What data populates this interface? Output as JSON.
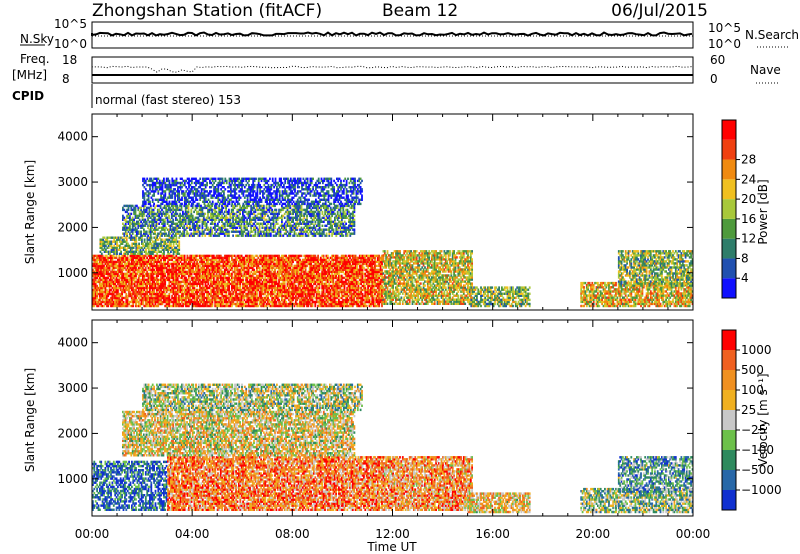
{
  "header": {
    "station": "Zhongshan Station (fitACF)",
    "beam": "Beam 12",
    "date": "06/Jul/2015"
  },
  "summary_panels": {
    "nsky": {
      "label": "N.Sky",
      "left_ticks": [
        "10^5",
        "10^0"
      ],
      "right_ticks": [
        "10^5",
        "10^0"
      ],
      "right_label": "N.Search"
    },
    "freq": {
      "label_line1": "Freq.",
      "label_line2": "[MHz]",
      "left_ticks": [
        "18",
        "8"
      ],
      "right_ticks": [
        "60",
        "0"
      ],
      "right_label": "Nave"
    },
    "cpid": {
      "label": "CPID",
      "text": "normal (fast stereo) 153"
    }
  },
  "chart_data": [
    {
      "type": "heatmap",
      "name": "power",
      "ylabel": "Slant Range [km]",
      "xlabel": "Time UT",
      "x_ticks": [
        "00:00",
        "04:00",
        "08:00",
        "12:00",
        "16:00",
        "20:00",
        "00:00"
      ],
      "x_range_hours": [
        0,
        24
      ],
      "ylim": [
        180,
        4500
      ],
      "y_ticks": [
        1000,
        2000,
        3000,
        4000
      ],
      "colorbar": {
        "label": "Power [dB]",
        "ticks": [
          "4",
          "8",
          "12",
          "16",
          "20",
          "24",
          "28"
        ],
        "colors": [
          "#1010ff",
          "#2050b0",
          "#2e7d6a",
          "#4e9a3c",
          "#a8c83a",
          "#f0c020",
          "#f08a10",
          "#f04010",
          "#ff0000"
        ]
      },
      "echo_regions": [
        {
          "t0": 0.0,
          "t1": 11.6,
          "r0": 250,
          "r1": 1400,
          "level": 0.85
        },
        {
          "t0": 0.3,
          "t1": 3.5,
          "r0": 1400,
          "r1": 1800,
          "level": 0.4
        },
        {
          "t0": 1.2,
          "t1": 10.5,
          "r0": 1800,
          "r1": 2500,
          "level": 0.3
        },
        {
          "t0": 2.0,
          "t1": 10.8,
          "r0": 2500,
          "r1": 3100,
          "level": 0.12
        },
        {
          "t0": 11.6,
          "t1": 15.2,
          "r0": 300,
          "r1": 1500,
          "level": 0.55
        },
        {
          "t0": 15.0,
          "t1": 17.5,
          "r0": 250,
          "r1": 700,
          "level": 0.45
        },
        {
          "t0": 19.5,
          "t1": 24.0,
          "r0": 250,
          "r1": 800,
          "level": 0.6
        },
        {
          "t0": 21.0,
          "t1": 24.0,
          "r0": 700,
          "r1": 1500,
          "level": 0.45
        }
      ]
    },
    {
      "type": "heatmap",
      "name": "velocity",
      "ylabel": "Slant Range [km]",
      "xlabel": "Time UT",
      "x_ticks": [
        "00:00",
        "04:00",
        "08:00",
        "12:00",
        "16:00",
        "20:00",
        "00:00"
      ],
      "x_range_hours": [
        0,
        24
      ],
      "ylim": [
        180,
        4500
      ],
      "y_ticks": [
        1000,
        2000,
        3000,
        4000
      ],
      "colorbar": {
        "label": "Velocity [m s⁻¹]",
        "ticks": [
          "1000",
          "500",
          "100",
          "25",
          "−25",
          "−100",
          "−500",
          "−1000"
        ],
        "colors": [
          "#1030d0",
          "#2868a8",
          "#2e8a5e",
          "#6cc04a",
          "#c8c8c8",
          "#f0b020",
          "#f09020",
          "#f06020",
          "#ff0000"
        ]
      },
      "echo_regions": [
        {
          "t0": 0.0,
          "t1": 3.0,
          "r0": 300,
          "r1": 1400,
          "level": 0.15
        },
        {
          "t0": 3.0,
          "t1": 11.6,
          "r0": 300,
          "r1": 1500,
          "level": 0.75
        },
        {
          "t0": 1.2,
          "t1": 10.5,
          "r0": 1500,
          "r1": 2500,
          "level": 0.55
        },
        {
          "t0": 2.0,
          "t1": 10.8,
          "r0": 2500,
          "r1": 3100,
          "level": 0.45
        },
        {
          "t0": 11.6,
          "t1": 15.2,
          "r0": 300,
          "r1": 1500,
          "level": 0.7
        },
        {
          "t0": 15.0,
          "t1": 17.5,
          "r0": 250,
          "r1": 700,
          "level": 0.6
        },
        {
          "t0": 19.5,
          "t1": 24.0,
          "r0": 250,
          "r1": 800,
          "level": 0.4
        },
        {
          "t0": 21.0,
          "t1": 24.0,
          "r0": 700,
          "r1": 1500,
          "level": 0.3
        }
      ]
    }
  ]
}
